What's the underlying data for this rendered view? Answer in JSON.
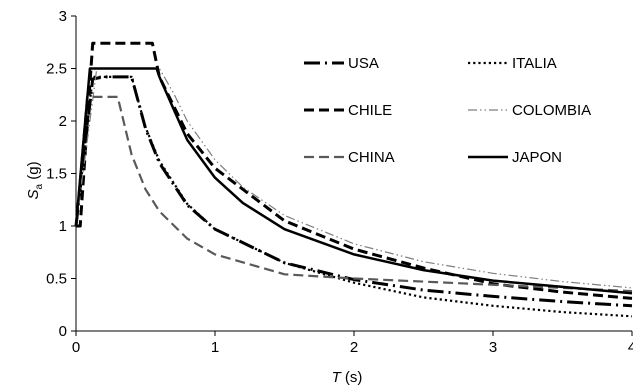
{
  "chart_data": {
    "type": "line",
    "xlabel": {
      "main": "T",
      "unit": " (s)"
    },
    "ylabel": {
      "main": "S",
      "sub": "a",
      "unit": " (g)"
    },
    "xlim": [
      0,
      4
    ],
    "ylim": [
      0,
      3
    ],
    "x_ticks": [
      0,
      1,
      2,
      3,
      4
    ],
    "x_tick_labels": [
      "0",
      "1",
      "2",
      "3",
      "4"
    ],
    "y_ticks": [
      0,
      0.5,
      1,
      1.5,
      2,
      2.5,
      3
    ],
    "y_tick_labels": [
      "0",
      "0.5",
      "1",
      "1.5",
      "2",
      "2.5",
      "3"
    ],
    "grid": false,
    "legend_position": "inside, upper right, two columns",
    "series": [
      {
        "name": "USA",
        "color": "#000000",
        "dash": "long-dash-dot",
        "width": 3,
        "x": [
          0,
          0.12,
          0.2,
          0.4,
          0.5,
          0.6,
          0.8,
          1.0,
          1.5,
          2.0,
          2.5,
          3.0,
          3.5,
          4.0
        ],
        "y": [
          1.0,
          2.4,
          2.42,
          2.42,
          1.93,
          1.6,
          1.2,
          0.97,
          0.65,
          0.49,
          0.39,
          0.33,
          0.28,
          0.24
        ]
      },
      {
        "name": "ITALIA",
        "color": "#000000",
        "dash": "dotted",
        "width": 2.2,
        "x": [
          0,
          0.12,
          0.18,
          0.4,
          0.5,
          0.6,
          0.8,
          1.0,
          1.5,
          2.0,
          2.5,
          3.0,
          3.5,
          4.0
        ],
        "y": [
          1.0,
          2.42,
          2.42,
          2.42,
          1.94,
          1.62,
          1.21,
          0.97,
          0.65,
          0.46,
          0.32,
          0.24,
          0.18,
          0.14
        ]
      },
      {
        "name": "CHILE",
        "color": "#000000",
        "dash": "dashed",
        "width": 3,
        "x": [
          0,
          0.03,
          0.12,
          0.55,
          0.6,
          0.8,
          1.0,
          1.5,
          2.0,
          2.5,
          3.0,
          3.5,
          4.0
        ],
        "y": [
          1.0,
          1.0,
          2.74,
          2.74,
          2.42,
          1.88,
          1.55,
          1.05,
          0.78,
          0.6,
          0.45,
          0.37,
          0.31
        ]
      },
      {
        "name": "COLOMBIA",
        "color": "#7f7f7f",
        "dash": "dash-dot-dot",
        "width": 1.2,
        "x": [
          0,
          0.15,
          0.6,
          0.7,
          0.8,
          1.0,
          1.2,
          1.5,
          2.0,
          2.5,
          3.0,
          3.5,
          4.0
        ],
        "y": [
          1.0,
          2.5,
          2.5,
          2.27,
          2.0,
          1.63,
          1.37,
          1.1,
          0.83,
          0.66,
          0.55,
          0.47,
          0.41
        ]
      },
      {
        "name": "CHINA",
        "color": "#595959",
        "dash": "dashed",
        "width": 2.2,
        "x": [
          0,
          0.08,
          0.1,
          0.3,
          0.4,
          0.5,
          0.6,
          0.8,
          1.0,
          1.5,
          2.0,
          2.5,
          3.0,
          3.5,
          4.0
        ],
        "y": [
          1.0,
          2.23,
          2.23,
          2.23,
          1.68,
          1.35,
          1.14,
          0.88,
          0.73,
          0.54,
          0.5,
          0.47,
          0.44,
          0.41,
          0.38
        ]
      },
      {
        "name": "JAPON",
        "color": "#000000",
        "dash": "solid",
        "width": 2.5,
        "x": [
          0,
          0.1,
          0.16,
          0.58,
          0.6,
          0.8,
          1.0,
          1.2,
          1.5,
          2.0,
          2.5,
          3.0,
          3.5,
          4.0
        ],
        "y": [
          1.0,
          2.5,
          2.5,
          2.5,
          2.42,
          1.82,
          1.46,
          1.22,
          0.97,
          0.73,
          0.58,
          0.48,
          0.42,
          0.36
        ]
      }
    ]
  }
}
